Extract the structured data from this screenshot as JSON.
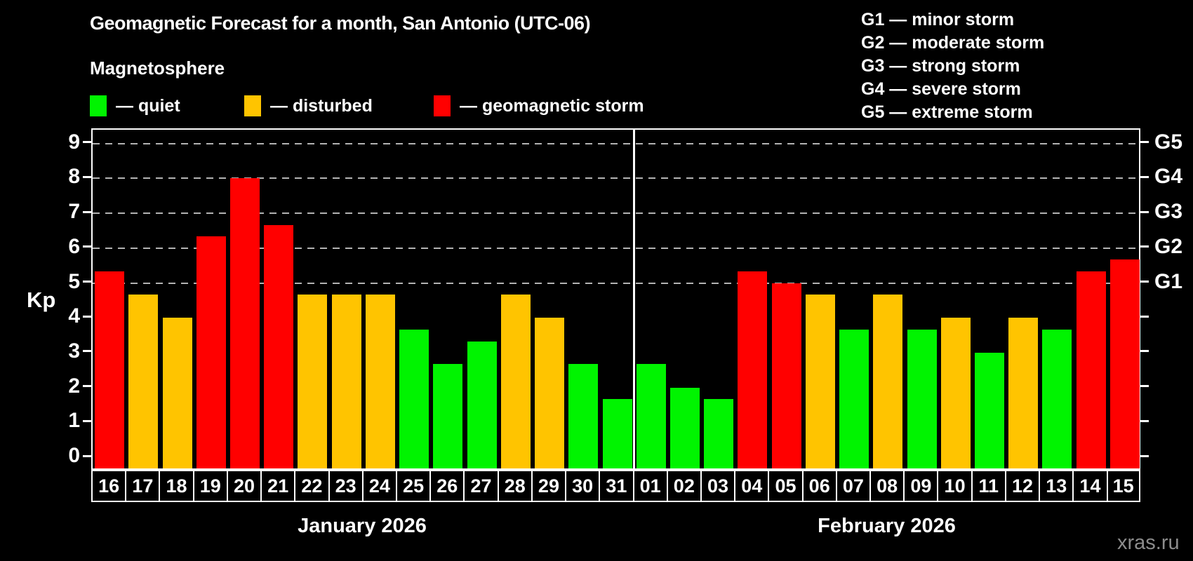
{
  "header": {
    "title": "Geomagnetic Forecast for a month, San Antonio (UTC-06)",
    "subtitle": "Magnetosphere"
  },
  "legend": {
    "items": [
      {
        "state": "quiet",
        "color": "#00f400",
        "label": "— quiet"
      },
      {
        "state": "disturbed",
        "color": "#ffc400",
        "label": "— disturbed"
      },
      {
        "state": "storm",
        "color": "#ff0000",
        "label": "— geomagnetic storm"
      }
    ]
  },
  "g_scale_legend": [
    "G1 — minor storm",
    "G2 — moderate storm",
    "G3 — strong storm",
    "G4 — severe storm",
    "G5 — extreme storm"
  ],
  "watermark": "xras.ru",
  "chart_data": {
    "type": "bar",
    "title": "Geomagnetic Forecast for a month, San Antonio (UTC-06)",
    "ylabel": "Kp",
    "ylim": [
      -0.4,
      9.4
    ],
    "yticks": [
      0,
      1,
      2,
      3,
      4,
      5,
      6,
      7,
      8,
      9
    ],
    "grid_kp": [
      5,
      6,
      7,
      8,
      9
    ],
    "grid": "horizontal dashed gray lines at Kp 5–9 only",
    "right_axis": {
      "labels": [
        "G1",
        "G2",
        "G3",
        "G4",
        "G5"
      ],
      "at_kp": [
        5,
        6,
        7,
        8,
        9
      ]
    },
    "palette": {
      "quiet": "#00f400",
      "disturbed": "#ffc400",
      "storm": "#ff0000"
    },
    "months": [
      {
        "label": "January 2026",
        "days": [
          {
            "date": "16",
            "kp": 5.33,
            "state": "storm"
          },
          {
            "date": "17",
            "kp": 4.67,
            "state": "disturbed"
          },
          {
            "date": "18",
            "kp": 4.0,
            "state": "disturbed"
          },
          {
            "date": "19",
            "kp": 6.33,
            "state": "storm"
          },
          {
            "date": "20",
            "kp": 8.0,
            "state": "storm"
          },
          {
            "date": "21",
            "kp": 6.67,
            "state": "storm"
          },
          {
            "date": "22",
            "kp": 4.67,
            "state": "disturbed"
          },
          {
            "date": "23",
            "kp": 4.67,
            "state": "disturbed"
          },
          {
            "date": "24",
            "kp": 4.67,
            "state": "disturbed"
          },
          {
            "date": "25",
            "kp": 3.67,
            "state": "quiet"
          },
          {
            "date": "26",
            "kp": 2.67,
            "state": "quiet"
          },
          {
            "date": "27",
            "kp": 3.33,
            "state": "quiet"
          },
          {
            "date": "28",
            "kp": 4.67,
            "state": "disturbed"
          },
          {
            "date": "29",
            "kp": 4.0,
            "state": "disturbed"
          },
          {
            "date": "30",
            "kp": 2.67,
            "state": "quiet"
          },
          {
            "date": "31",
            "kp": 1.67,
            "state": "quiet"
          }
        ]
      },
      {
        "label": "February 2026",
        "days": [
          {
            "date": "01",
            "kp": 2.67,
            "state": "quiet"
          },
          {
            "date": "02",
            "kp": 2.0,
            "state": "quiet"
          },
          {
            "date": "03",
            "kp": 1.67,
            "state": "quiet"
          },
          {
            "date": "04",
            "kp": 5.33,
            "state": "storm"
          },
          {
            "date": "05",
            "kp": 5.0,
            "state": "storm"
          },
          {
            "date": "06",
            "kp": 4.67,
            "state": "disturbed"
          },
          {
            "date": "07",
            "kp": 3.67,
            "state": "quiet"
          },
          {
            "date": "08",
            "kp": 4.67,
            "state": "disturbed"
          },
          {
            "date": "09",
            "kp": 3.67,
            "state": "quiet"
          },
          {
            "date": "10",
            "kp": 4.0,
            "state": "disturbed"
          },
          {
            "date": "11",
            "kp": 3.0,
            "state": "quiet"
          },
          {
            "date": "12",
            "kp": 4.0,
            "state": "disturbed"
          },
          {
            "date": "13",
            "kp": 3.67,
            "state": "quiet"
          },
          {
            "date": "14",
            "kp": 5.33,
            "state": "storm"
          },
          {
            "date": "15",
            "kp": 5.67,
            "state": "storm"
          }
        ]
      }
    ]
  }
}
